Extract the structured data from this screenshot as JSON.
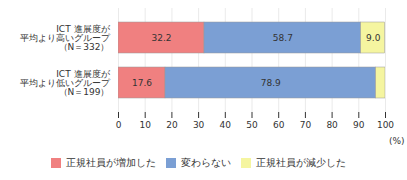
{
  "chart_data": {
    "type": "bar",
    "orientation": "horizontal",
    "stacked": true,
    "categories": [
      "ICT 進展度が\n平均より高いグループ\n（N＝332）",
      "ICT 進展度が\n平均より低いグループ\n（N＝199）"
    ],
    "series": [
      {
        "name": "正規社員が増加した",
        "color": "#f08080",
        "values": [
          32.2,
          17.6
        ],
        "value_labels": [
          "32.2",
          "17.6"
        ]
      },
      {
        "name": "変わらない",
        "color": "#7b9fd4",
        "values": [
          58.7,
          78.9
        ],
        "value_labels": [
          "58.7",
          "78.9"
        ]
      },
      {
        "name": "正規社員が減少した",
        "color": "#f5f5a0",
        "values": [
          9.0,
          3.5
        ],
        "value_labels": [
          "9.0",
          null
        ]
      }
    ],
    "xlabel": "(%)",
    "xlim": [
      0,
      100
    ],
    "xticks": [
      0,
      10,
      20,
      30,
      40,
      50,
      60,
      70,
      80,
      90,
      100
    ],
    "grid": true,
    "legend": "bottom",
    "data_labels": true
  }
}
